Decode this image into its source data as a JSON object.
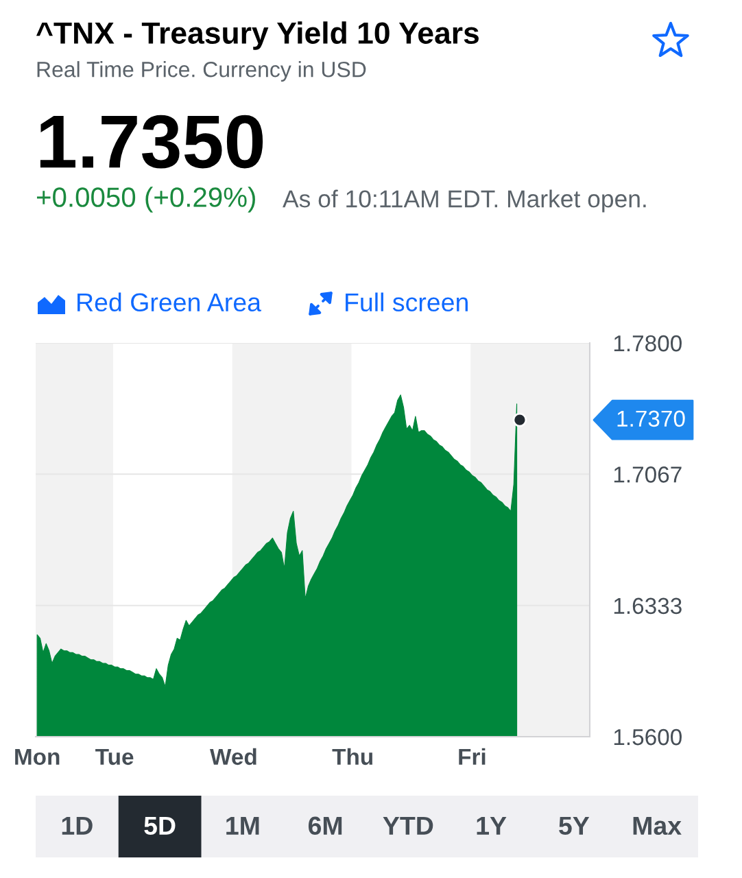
{
  "chart_data": {
    "type": "area",
    "title": "^TNX - Treasury Yield 10 Years",
    "subtitle": "Real Time Price. Currency in USD",
    "annotations": [
      "1.7350",
      "+0.0050 (+0.29%)",
      "As of 10:11AM EDT. Market open.",
      "Red Green Area",
      "Full screen",
      "1.7370",
      "1D",
      "5D",
      "1M",
      "6M",
      "YTD",
      "1Y",
      "5Y",
      "Max"
    ],
    "categories": [
      "Mon",
      null,
      null,
      null,
      null,
      null,
      null,
      null,
      null,
      null,
      null,
      null,
      null,
      null,
      null,
      null,
      null,
      null,
      null,
      null,
      null,
      null,
      null,
      null,
      null,
      null,
      "Tue",
      null,
      null,
      null,
      null,
      null,
      null,
      null,
      null,
      null,
      null,
      null,
      null,
      null,
      null,
      null,
      null,
      null,
      null,
      null,
      null,
      null,
      null,
      null,
      null,
      null,
      null,
      null,
      null,
      null,
      null,
      null,
      null,
      null,
      null,
      null,
      null,
      null,
      null,
      null,
      "Wed",
      null,
      null,
      null,
      null,
      null,
      null,
      null,
      null,
      null,
      null,
      null,
      null,
      null,
      null,
      null,
      null,
      null,
      null,
      null,
      null,
      null,
      null,
      null,
      null,
      null,
      null,
      null,
      null,
      null,
      null,
      null,
      null,
      null,
      null,
      null,
      null,
      null,
      null,
      null,
      "Thu",
      null,
      null,
      null,
      null,
      null,
      null,
      null,
      null,
      null,
      null,
      null,
      null,
      null,
      null,
      null,
      null,
      null,
      null,
      null,
      null,
      null,
      null,
      null,
      null,
      null,
      null,
      null,
      null,
      null,
      null,
      null,
      null,
      null,
      null,
      null,
      null,
      null,
      null,
      null,
      "Fri",
      null,
      null,
      null,
      null,
      null,
      null,
      null,
      null,
      null,
      null,
      null,
      null,
      null,
      null,
      null,
      null,
      null,
      null,
      null,
      null,
      null,
      null,
      null,
      null,
      null,
      null,
      null,
      null,
      null,
      null,
      null,
      null,
      null,
      null,
      null,
      null,
      null,
      null,
      null
    ],
    "series": [
      {
        "color": "#00873c",
        "values": [
          1.617,
          1.615,
          1.607,
          1.612,
          1.608,
          1.601,
          1.605,
          1.607,
          1.609,
          1.608,
          1.608,
          1.607,
          1.607,
          1.606,
          1.606,
          1.605,
          1.605,
          1.604,
          1.603,
          1.603,
          1.602,
          1.602,
          1.601,
          1.601,
          1.6,
          1.6,
          1.599,
          1.599,
          1.598,
          1.598,
          1.597,
          1.597,
          1.596,
          1.595,
          1.595,
          1.594,
          1.594,
          1.593,
          1.593,
          1.592,
          1.598,
          1.595,
          1.593,
          1.588,
          1.6,
          1.606,
          1.609,
          1.615,
          1.614,
          1.62,
          1.625,
          1.622,
          1.624,
          1.626,
          1.628,
          1.629,
          1.631,
          1.633,
          1.635,
          1.636,
          1.638,
          1.64,
          1.642,
          1.643,
          1.645,
          1.647,
          1.649,
          1.65,
          1.652,
          1.654,
          1.656,
          1.657,
          1.659,
          1.661,
          1.663,
          1.664,
          1.666,
          1.668,
          1.669,
          1.671,
          1.668,
          1.665,
          1.663,
          1.654,
          1.674,
          1.682,
          1.686,
          1.668,
          1.661,
          1.664,
          1.637,
          1.644,
          1.648,
          1.651,
          1.654,
          1.658,
          1.661,
          1.665,
          1.668,
          1.671,
          1.675,
          1.678,
          1.682,
          1.685,
          1.689,
          1.692,
          1.695,
          1.699,
          1.702,
          1.706,
          1.709,
          1.712,
          1.716,
          1.719,
          1.723,
          1.726,
          1.73,
          1.733,
          1.736,
          1.739,
          1.741,
          1.748,
          1.751,
          1.744,
          1.732,
          1.734,
          1.731,
          1.739,
          1.73,
          1.731,
          1.731,
          1.729,
          1.728,
          1.726,
          1.725,
          1.723,
          1.722,
          1.72,
          1.719,
          1.717,
          1.715,
          1.714,
          1.712,
          1.711,
          1.709,
          1.708,
          1.706,
          1.705,
          1.703,
          1.702,
          1.7,
          1.698,
          1.697,
          1.695,
          1.694,
          1.692,
          1.691,
          1.689,
          1.688,
          1.686,
          1.701,
          1.746,
          null,
          null,
          null,
          null,
          null,
          null,
          null,
          null,
          null,
          null,
          null,
          null,
          null,
          null,
          null,
          null,
          null,
          null,
          null,
          null,
          null,
          null,
          null,
          null
        ]
      },
      {
        "type": "scatter",
        "marker": "circle",
        "color": "#232a31",
        "values": [
          null,
          null,
          null,
          null,
          null,
          null,
          null,
          null,
          null,
          null,
          null,
          null,
          null,
          null,
          null,
          null,
          null,
          null,
          null,
          null,
          null,
          null,
          null,
          null,
          null,
          null,
          null,
          null,
          null,
          null,
          null,
          null,
          null,
          null,
          null,
          null,
          null,
          null,
          null,
          null,
          null,
          null,
          null,
          null,
          null,
          null,
          null,
          null,
          null,
          null,
          null,
          null,
          null,
          null,
          null,
          null,
          null,
          null,
          null,
          null,
          null,
          null,
          null,
          null,
          null,
          null,
          null,
          null,
          null,
          null,
          null,
          null,
          null,
          null,
          null,
          null,
          null,
          null,
          null,
          null,
          null,
          null,
          null,
          null,
          null,
          null,
          null,
          null,
          null,
          null,
          null,
          null,
          null,
          null,
          null,
          null,
          null,
          null,
          null,
          null,
          null,
          null,
          null,
          null,
          null,
          null,
          null,
          null,
          null,
          null,
          null,
          null,
          null,
          null,
          null,
          null,
          null,
          null,
          null,
          null,
          null,
          null,
          null,
          null,
          null,
          null,
          null,
          null,
          null,
          null,
          null,
          null,
          null,
          null,
          null,
          null,
          null,
          null,
          null,
          null,
          null,
          null,
          null,
          null,
          null,
          null,
          null,
          null,
          null,
          null,
          null,
          null,
          null,
          null,
          null,
          null,
          null,
          null,
          null,
          null,
          null,
          null,
          1.737,
          null,
          null,
          null,
          null,
          null,
          null,
          null,
          null,
          null,
          null,
          null,
          null,
          null,
          null,
          null,
          null,
          null,
          null,
          null,
          null,
          null,
          null,
          null
        ]
      }
    ],
    "ylim": [
      1.56,
      1.78
    ],
    "yticks": [
      {
        "value": 1.56,
        "label": "1.5600"
      },
      1.6333,
      1.7067,
      {
        "value": 1.78,
        "label": "1.7800"
      }
    ],
    "grid": "y",
    "bands": [
      {
        "axis": "x",
        "from": "Tue",
        "to": "Wed",
        "color": "#ffffff"
      },
      {
        "axis": "x",
        "from": "Thu",
        "to": "Fri",
        "color": "#ffffff"
      }
    ]
  }
}
